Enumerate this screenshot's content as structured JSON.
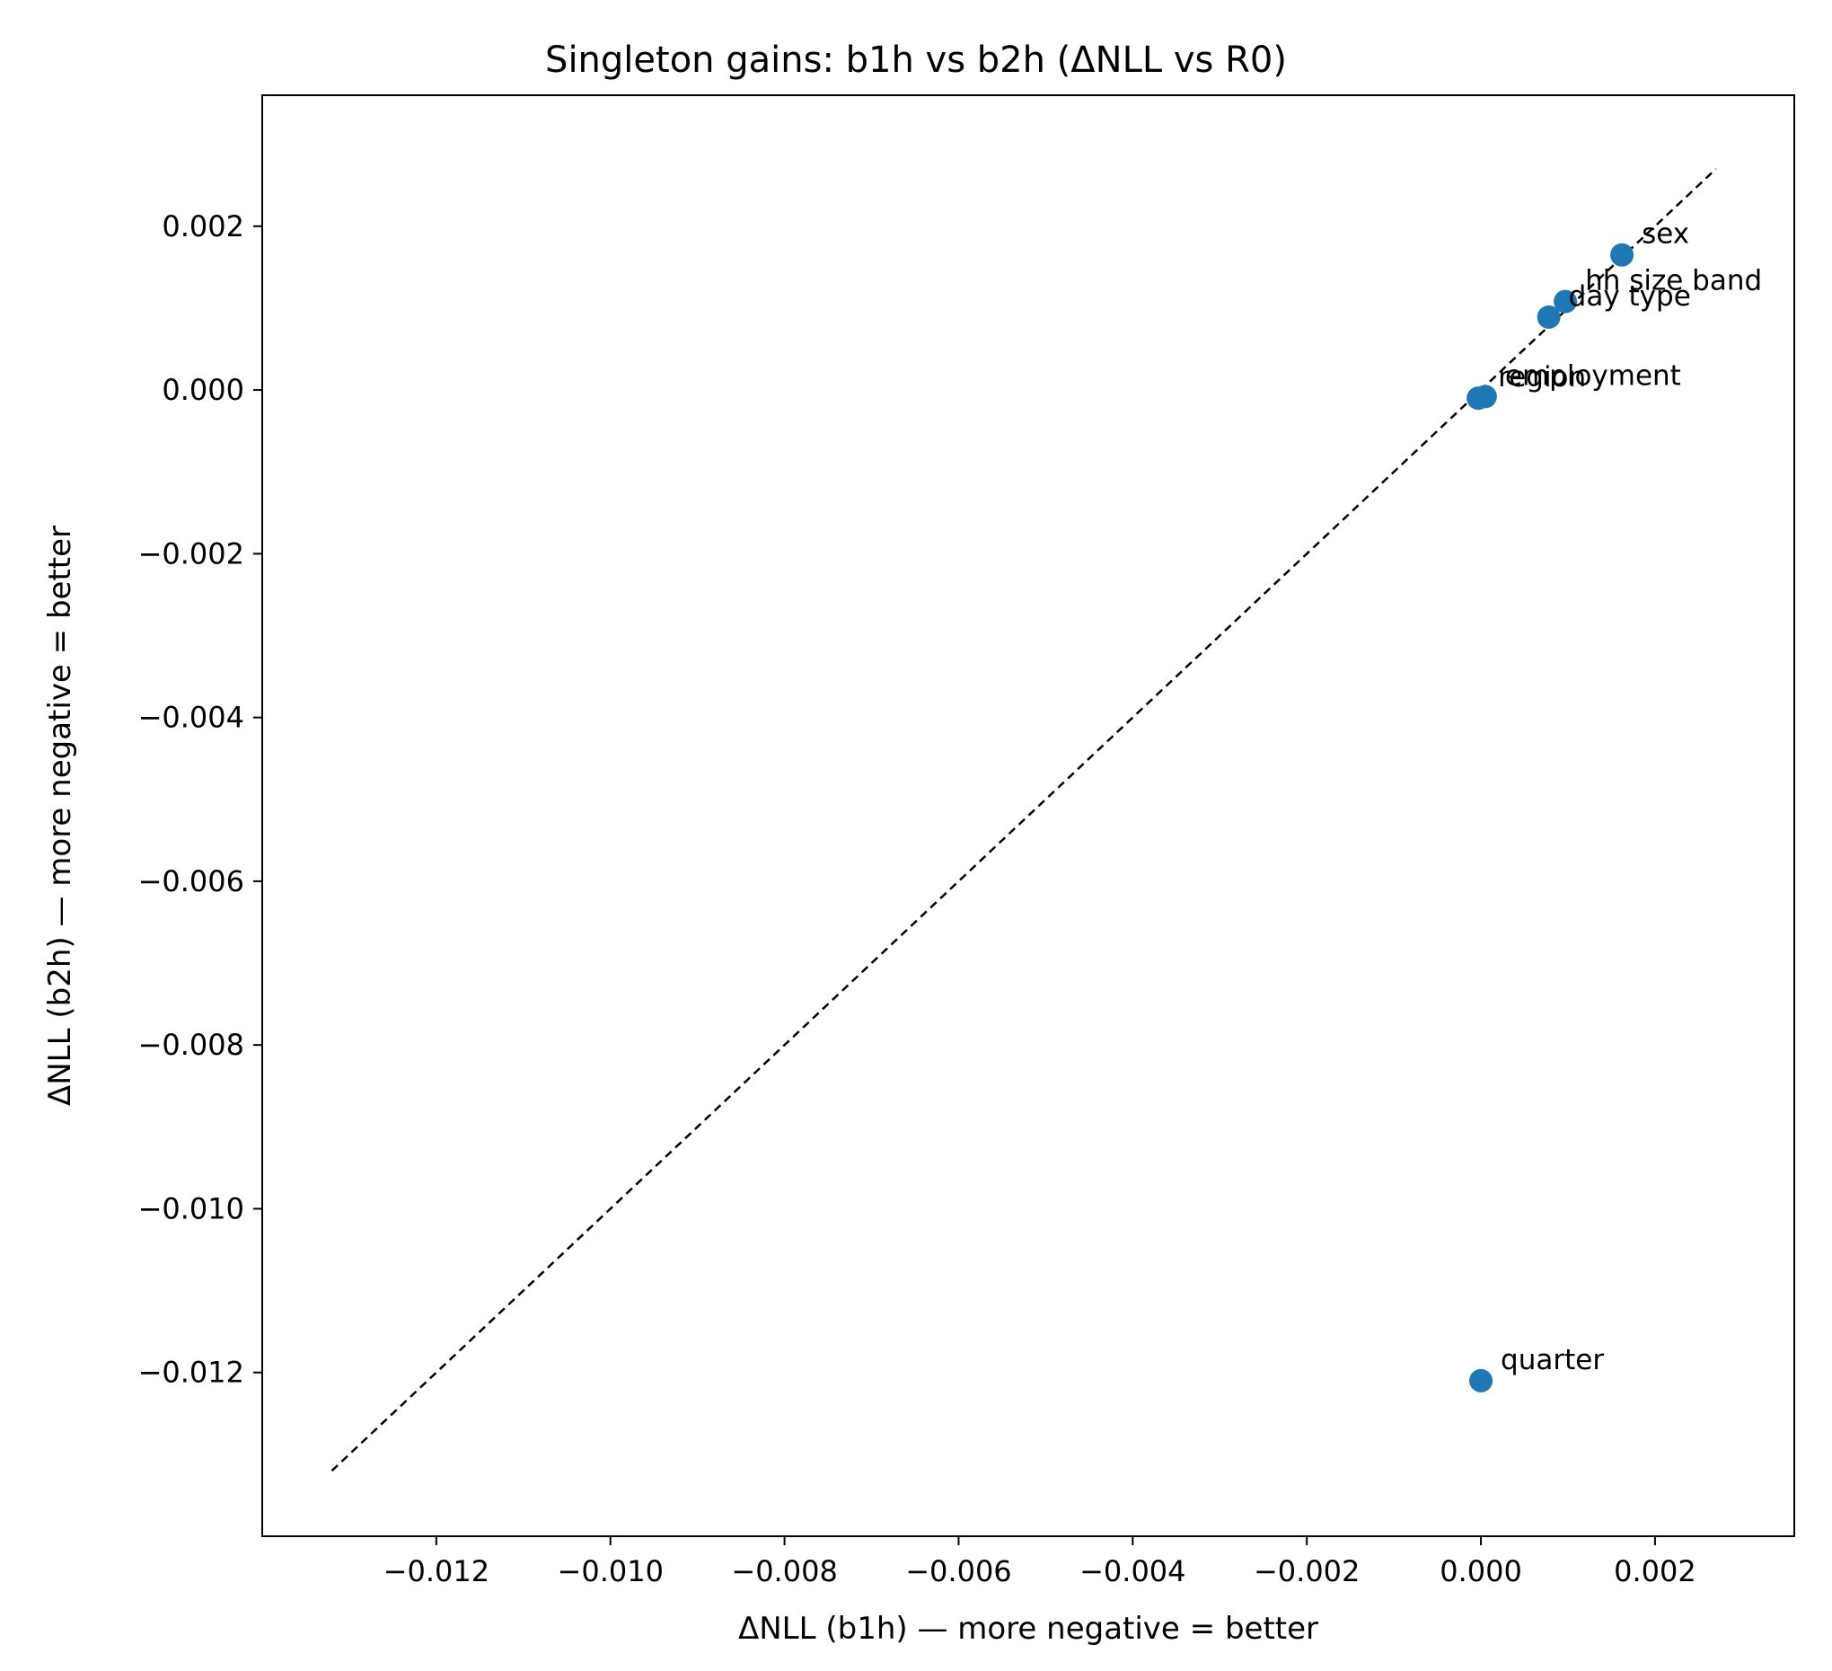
{
  "chart_data": {
    "type": "scatter",
    "title": "Singleton gains: b1h vs b2h (ΔNLL vs R0)",
    "xlabel": "ΔNLL (b1h)  —  more negative = better",
    "ylabel": "ΔNLL (b2h)  —  more negative = better",
    "xlim": [
      -0.014,
      0.0036
    ],
    "ylim": [
      -0.014,
      0.0036
    ],
    "xticks": [
      -0.012,
      -0.01,
      -0.008,
      -0.006,
      -0.004,
      -0.002,
      0.0,
      0.002
    ],
    "yticks": [
      -0.012,
      -0.01,
      -0.008,
      -0.006,
      -0.004,
      -0.002,
      0.0,
      0.002
    ],
    "xtick_labels": [
      "−0.012",
      "−0.010",
      "−0.008",
      "−0.006",
      "−0.004",
      "−0.002",
      "0.000",
      "0.002"
    ],
    "ytick_labels": [
      "−0.012",
      "−0.010",
      "−0.008",
      "−0.006",
      "−0.004",
      "−0.002",
      "0.000",
      "0.002"
    ],
    "reference_line": {
      "style": "dashed",
      "color": "#000000",
      "from": [
        -0.0132,
        -0.0132
      ],
      "to": [
        0.0027,
        0.0027
      ]
    },
    "marker_color": "#1f77b4",
    "points": [
      {
        "label": "sex",
        "x": 0.00162,
        "y": 0.00165
      },
      {
        "label": "hh size band",
        "x": 0.00097,
        "y": 0.00108
      },
      {
        "label": "day type",
        "x": 0.00078,
        "y": 0.00089
      },
      {
        "label": "employment",
        "x": 5e-05,
        "y": -8e-05
      },
      {
        "label": "region",
        "x": -3e-05,
        "y": -0.0001
      },
      {
        "label": "quarter",
        "x": 0.0,
        "y": -0.0121
      }
    ]
  }
}
